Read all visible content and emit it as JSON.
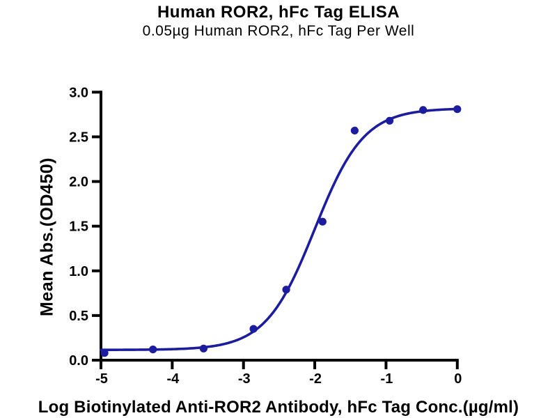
{
  "page": {
    "background": "#FFFFFF"
  },
  "chart_data": {
    "type": "scatter",
    "title": "Human ROR2, hFc Tag ELISA",
    "subtitle": "0.05µg Human ROR2, hFc Tag Per Well",
    "xlabel": "Log Biotinylated Anti-ROR2 Antibody, hFc Tag Conc.(µg/ml)",
    "ylabel": "Mean Abs.(OD450)",
    "xlim": [
      -5,
      0
    ],
    "ylim": [
      0,
      3.0
    ],
    "x_ticks": [
      -5,
      -4,
      -3,
      -2,
      -1,
      0
    ],
    "x_tick_labels": [
      "-5",
      "-4",
      "-3",
      "-2",
      "-1",
      "0"
    ],
    "y_ticks": [
      0,
      0.5,
      1.0,
      1.5,
      2.0,
      2.5,
      3.0
    ],
    "y_tick_labels": [
      "0.0",
      "0.5",
      "1.0",
      "1.5",
      "2.0",
      "2.5",
      "3.0"
    ],
    "grid": false,
    "legend": null,
    "series": [
      {
        "name": "Biotinylated Anti-ROR2 Antibody, hFc Tag",
        "marker": "circle",
        "color": "#1C1C9E",
        "x": [
          -4.95,
          -4.27,
          -3.56,
          -2.86,
          -2.4,
          -1.89,
          -1.44,
          -0.95,
          -0.48,
          0.0
        ],
        "y": [
          0.08,
          0.12,
          0.13,
          0.35,
          0.79,
          1.55,
          2.57,
          2.68,
          2.8,
          2.81
        ]
      }
    ],
    "fit_curve": {
      "model": "4PL",
      "bottom": 0.115,
      "top": 2.82,
      "logEC50": -2.0,
      "hill": 1.26,
      "color": "#1C1C9E"
    }
  },
  "colors": {
    "accent": "#1C1C9E",
    "axis": "#000000",
    "text": "#000000",
    "background": "#FFFFFF"
  }
}
